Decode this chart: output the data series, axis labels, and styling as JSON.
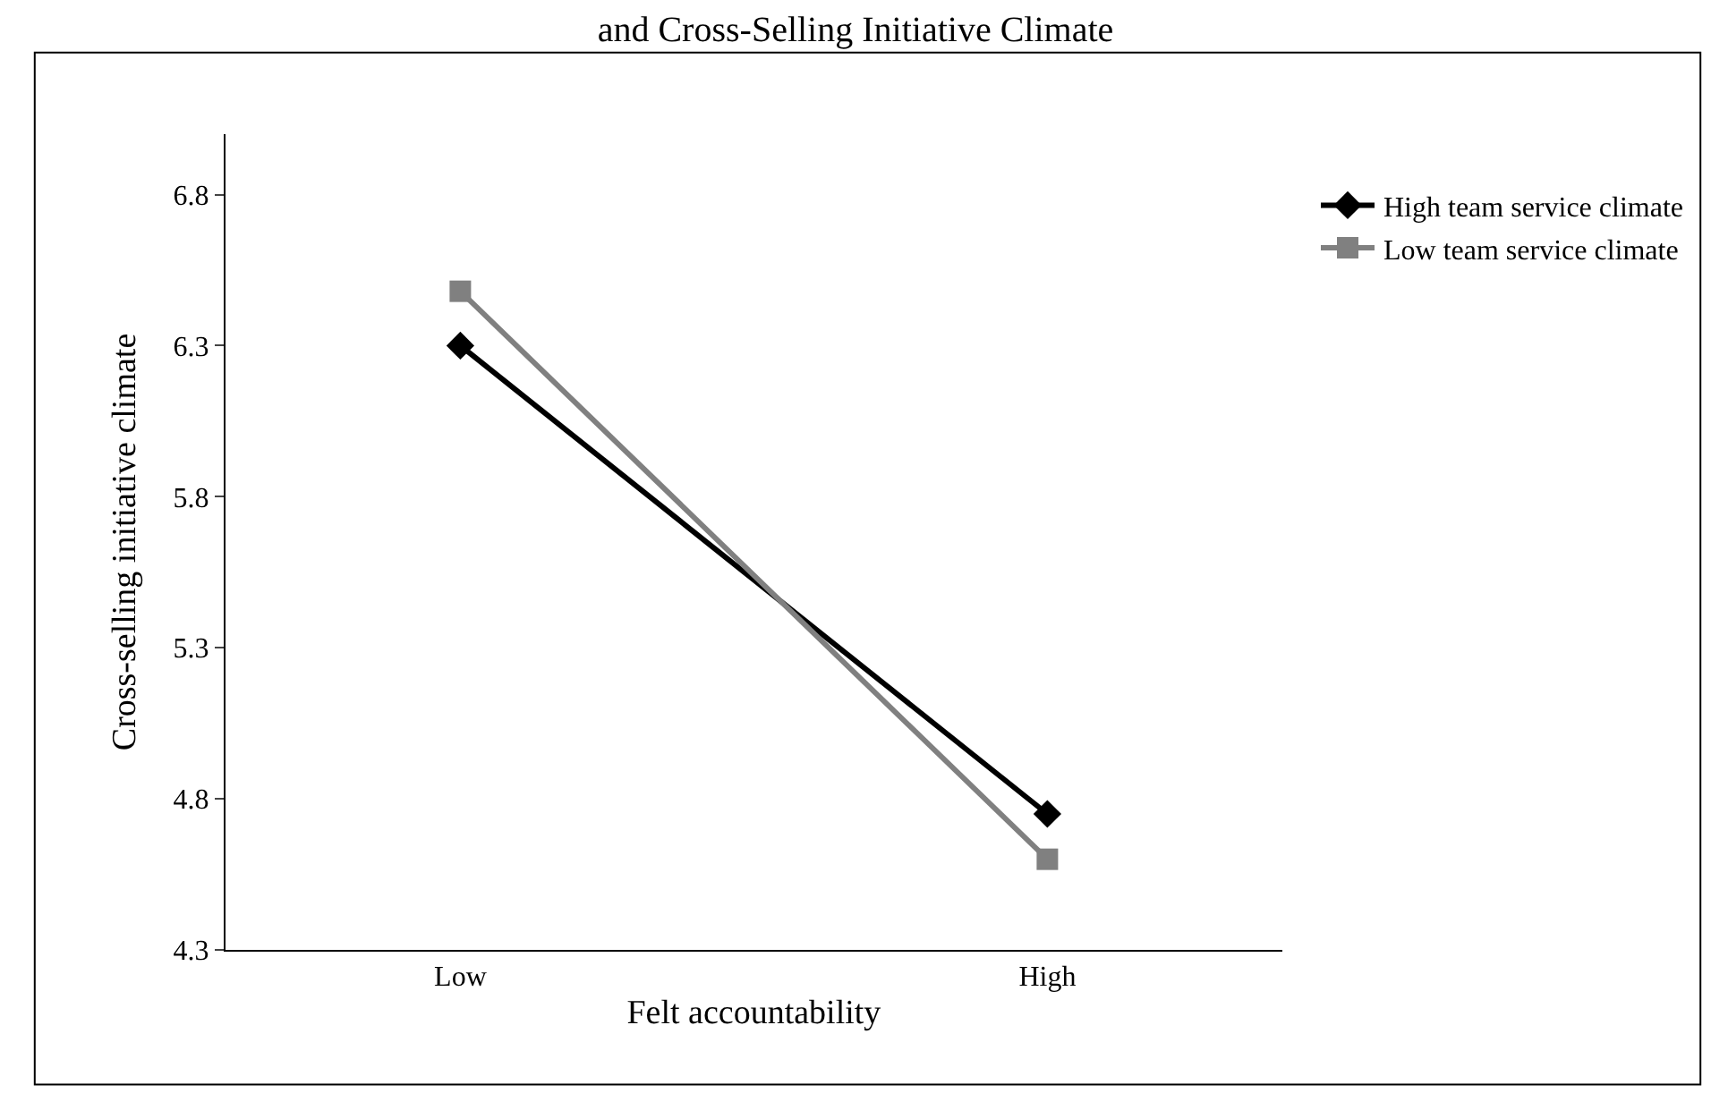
{
  "chart_data": {
    "type": "line",
    "title": "and Cross-Selling Initiative Climate",
    "xlabel": "Felt accountability",
    "ylabel": "Cross-selling initiative climate",
    "categories": [
      "Low",
      "High"
    ],
    "series": [
      {
        "name": "High team service climate",
        "color": "#000000",
        "values": [
          6.3,
          4.75
        ],
        "marker": "diamond"
      },
      {
        "name": "Low team service climate",
        "color": "#808080",
        "values": [
          6.48,
          4.6
        ],
        "marker": "square"
      }
    ],
    "ylim": [
      4.3,
      7.0
    ],
    "yticks": [
      4.3,
      4.8,
      5.3,
      5.8,
      6.3,
      6.8
    ],
    "legend": "top right",
    "line_style": "solid"
  }
}
